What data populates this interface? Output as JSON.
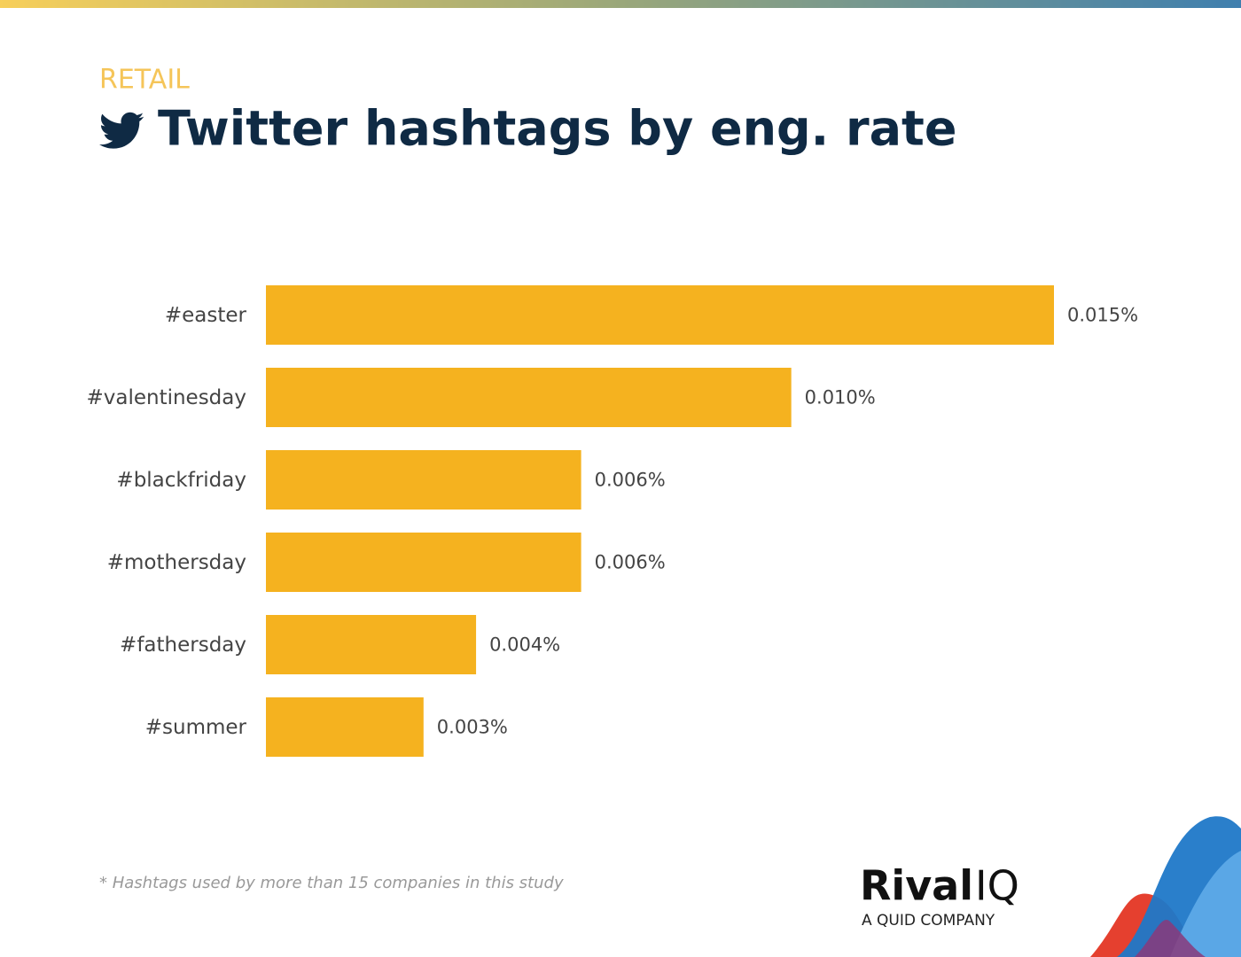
{
  "chart_data": {
    "type": "bar",
    "orientation": "horizontal",
    "kicker": "RETAIL",
    "title": "Twitter hashtags by eng. rate",
    "categories": [
      "#easter",
      "#valentinesday",
      "#blackfriday",
      "#mothersday",
      "#fathersday",
      "#summer"
    ],
    "values": [
      0.015,
      0.01,
      0.006,
      0.006,
      0.004,
      0.003
    ],
    "value_labels": [
      "0.015%",
      "0.010%",
      "0.006%",
      "0.006%",
      "0.004%",
      "0.003%"
    ],
    "color": "#f5b21f",
    "footnote": "* Hashtags used by more than 15 companies in this study",
    "logo_name": "Rival",
    "logo_suffix": "IQ",
    "logo_tagline": "A QUID COMPANY"
  }
}
